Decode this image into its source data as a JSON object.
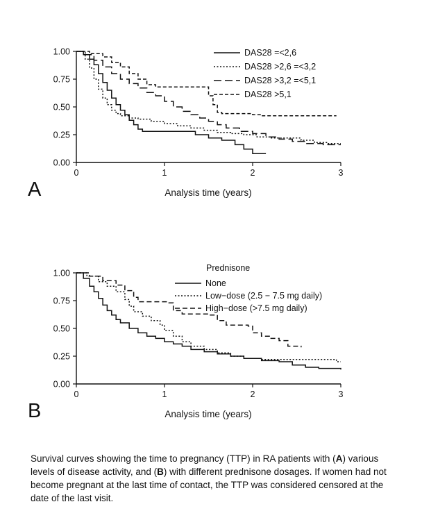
{
  "caption": {
    "part1": "Survival curves showing the time to pregnancy (TTP) in RA patients with (",
    "bold_a": "A",
    "part2": ") various levels of disease activity, and (",
    "bold_b": "B",
    "part3": ") with different prednisone dosages. If women had not become pregnant at the last time of contact, the TTP was considered censored at the date of the last visit."
  },
  "chart_data": [
    {
      "type": "line",
      "subtype": "kaplan-meier-step",
      "panel_label": "A",
      "title": "",
      "xlabel": "Analysis time (years)",
      "ylabel": "",
      "xlim": [
        0,
        3
      ],
      "ylim": [
        0,
        1
      ],
      "x_ticks": [
        "0",
        "1",
        "2",
        "3"
      ],
      "y_ticks": [
        "0.00",
        "0.25",
        "0.50",
        "0.75",
        "1.00"
      ],
      "grid": false,
      "legend_title": "",
      "legend_position": "top-right-inside",
      "series": [
        {
          "name": "DAS28 =<2,6",
          "dash": "solid",
          "points": [
            [
              0,
              1.0
            ],
            [
              0.08,
              0.97
            ],
            [
              0.15,
              0.93
            ],
            [
              0.2,
              0.88
            ],
            [
              0.25,
              0.8
            ],
            [
              0.3,
              0.72
            ],
            [
              0.35,
              0.65
            ],
            [
              0.4,
              0.58
            ],
            [
              0.45,
              0.52
            ],
            [
              0.5,
              0.47
            ],
            [
              0.55,
              0.43
            ],
            [
              0.6,
              0.38
            ],
            [
              0.65,
              0.34
            ],
            [
              0.7,
              0.3
            ],
            [
              0.75,
              0.28
            ],
            [
              1.3,
              0.28
            ],
            [
              1.35,
              0.25
            ],
            [
              1.5,
              0.22
            ],
            [
              1.65,
              0.2
            ],
            [
              1.8,
              0.16
            ],
            [
              1.9,
              0.12
            ],
            [
              2.0,
              0.08
            ],
            [
              2.15,
              0.08
            ]
          ]
        },
        {
          "name": "DAS28 >2,6 =<3,2",
          "dash": "dotted",
          "points": [
            [
              0,
              1.0
            ],
            [
              0.1,
              0.93
            ],
            [
              0.15,
              0.85
            ],
            [
              0.2,
              0.75
            ],
            [
              0.25,
              0.66
            ],
            [
              0.3,
              0.58
            ],
            [
              0.35,
              0.52
            ],
            [
              0.4,
              0.47
            ],
            [
              0.45,
              0.44
            ],
            [
              0.5,
              0.42
            ],
            [
              0.6,
              0.4
            ],
            [
              0.7,
              0.39
            ],
            [
              0.85,
              0.37
            ],
            [
              1.0,
              0.35
            ],
            [
              1.15,
              0.33
            ],
            [
              1.3,
              0.31
            ],
            [
              1.45,
              0.29
            ],
            [
              1.6,
              0.27
            ],
            [
              1.75,
              0.26
            ],
            [
              1.9,
              0.25
            ],
            [
              2.05,
              0.23
            ],
            [
              2.2,
              0.22
            ],
            [
              2.55,
              0.2
            ],
            [
              2.7,
              0.18
            ],
            [
              2.85,
              0.17
            ],
            [
              3.0,
              0.17
            ]
          ]
        },
        {
          "name": "DAS28 >3,2 =<5,1",
          "dash": "longdash",
          "points": [
            [
              0,
              1.0
            ],
            [
              0.1,
              0.97
            ],
            [
              0.2,
              0.92
            ],
            [
              0.3,
              0.86
            ],
            [
              0.4,
              0.8
            ],
            [
              0.5,
              0.75
            ],
            [
              0.6,
              0.71
            ],
            [
              0.7,
              0.67
            ],
            [
              0.8,
              0.63
            ],
            [
              0.9,
              0.6
            ],
            [
              1.0,
              0.55
            ],
            [
              1.1,
              0.5
            ],
            [
              1.2,
              0.46
            ],
            [
              1.3,
              0.43
            ],
            [
              1.4,
              0.4
            ],
            [
              1.5,
              0.37
            ],
            [
              1.6,
              0.34
            ],
            [
              1.7,
              0.31
            ],
            [
              1.85,
              0.28
            ],
            [
              2.0,
              0.26
            ],
            [
              2.15,
              0.23
            ],
            [
              2.3,
              0.21
            ],
            [
              2.45,
              0.19
            ],
            [
              2.6,
              0.17
            ],
            [
              2.8,
              0.16
            ],
            [
              3.0,
              0.16
            ]
          ]
        },
        {
          "name": "DAS28 >5,1",
          "dash": "shortdash",
          "points": [
            [
              0,
              1.0
            ],
            [
              0.15,
              0.98
            ],
            [
              0.3,
              0.95
            ],
            [
              0.4,
              0.9
            ],
            [
              0.5,
              0.86
            ],
            [
              0.6,
              0.8
            ],
            [
              0.7,
              0.75
            ],
            [
              0.8,
              0.7
            ],
            [
              0.9,
              0.68
            ],
            [
              1.4,
              0.68
            ],
            [
              1.5,
              0.6
            ],
            [
              1.55,
              0.52
            ],
            [
              1.6,
              0.45
            ],
            [
              1.65,
              0.44
            ],
            [
              2.0,
              0.43
            ],
            [
              2.1,
              0.42
            ],
            [
              2.95,
              0.42
            ]
          ]
        }
      ]
    },
    {
      "type": "line",
      "subtype": "kaplan-meier-step",
      "panel_label": "B",
      "title": "",
      "xlabel": "Analysis time (years)",
      "ylabel": "",
      "xlim": [
        0,
        3
      ],
      "ylim": [
        0,
        1
      ],
      "x_ticks": [
        "0",
        "1",
        "2",
        "3"
      ],
      "y_ticks": [
        "0.00",
        "0.25",
        "0.50",
        "0.75",
        "1.00"
      ],
      "grid": false,
      "legend_title": "Prednisone",
      "legend_position": "top-right-inside",
      "series": [
        {
          "name": "None",
          "dash": "solid",
          "points": [
            [
              0,
              1.0
            ],
            [
              0.08,
              0.95
            ],
            [
              0.15,
              0.88
            ],
            [
              0.2,
              0.83
            ],
            [
              0.25,
              0.77
            ],
            [
              0.3,
              0.71
            ],
            [
              0.35,
              0.66
            ],
            [
              0.4,
              0.62
            ],
            [
              0.45,
              0.58
            ],
            [
              0.5,
              0.55
            ],
            [
              0.6,
              0.5
            ],
            [
              0.7,
              0.46
            ],
            [
              0.8,
              0.43
            ],
            [
              0.9,
              0.41
            ],
            [
              1.0,
              0.38
            ],
            [
              1.1,
              0.36
            ],
            [
              1.2,
              0.34
            ],
            [
              1.3,
              0.31
            ],
            [
              1.45,
              0.29
            ],
            [
              1.6,
              0.27
            ],
            [
              1.75,
              0.25
            ],
            [
              1.9,
              0.23
            ],
            [
              2.1,
              0.21
            ],
            [
              2.3,
              0.2
            ],
            [
              2.45,
              0.17
            ],
            [
              2.6,
              0.15
            ],
            [
              2.75,
              0.14
            ],
            [
              3.0,
              0.13
            ]
          ]
        },
        {
          "name": "Low−dose (2.5 − 7.5 mg daily)",
          "dash": "dotted",
          "points": [
            [
              0,
              1.0
            ],
            [
              0.12,
              0.97
            ],
            [
              0.25,
              0.92
            ],
            [
              0.35,
              0.88
            ],
            [
              0.45,
              0.83
            ],
            [
              0.55,
              0.76
            ],
            [
              0.6,
              0.7
            ],
            [
              0.65,
              0.65
            ],
            [
              0.75,
              0.61
            ],
            [
              0.85,
              0.57
            ],
            [
              0.95,
              0.53
            ],
            [
              1.0,
              0.48
            ],
            [
              1.1,
              0.43
            ],
            [
              1.2,
              0.38
            ],
            [
              1.3,
              0.34
            ],
            [
              1.45,
              0.31
            ],
            [
              1.6,
              0.28
            ],
            [
              1.75,
              0.25
            ],
            [
              1.9,
              0.23
            ],
            [
              2.1,
              0.22
            ],
            [
              2.85,
              0.22
            ],
            [
              2.95,
              0.2
            ],
            [
              3.0,
              0.2
            ]
          ]
        },
        {
          "name": "High−dose (>7.5 mg daily)",
          "dash": "dash",
          "points": [
            [
              0,
              1.0
            ],
            [
              0.15,
              0.97
            ],
            [
              0.3,
              0.93
            ],
            [
              0.45,
              0.89
            ],
            [
              0.55,
              0.84
            ],
            [
              0.65,
              0.78
            ],
            [
              0.7,
              0.74
            ],
            [
              1.05,
              0.73
            ],
            [
              1.1,
              0.66
            ],
            [
              1.2,
              0.63
            ],
            [
              1.5,
              0.62
            ],
            [
              1.6,
              0.57
            ],
            [
              1.7,
              0.53
            ],
            [
              1.95,
              0.52
            ],
            [
              2.0,
              0.46
            ],
            [
              2.1,
              0.43
            ],
            [
              2.2,
              0.41
            ],
            [
              2.3,
              0.39
            ],
            [
              2.4,
              0.34
            ],
            [
              2.55,
              0.33
            ]
          ]
        }
      ]
    }
  ]
}
